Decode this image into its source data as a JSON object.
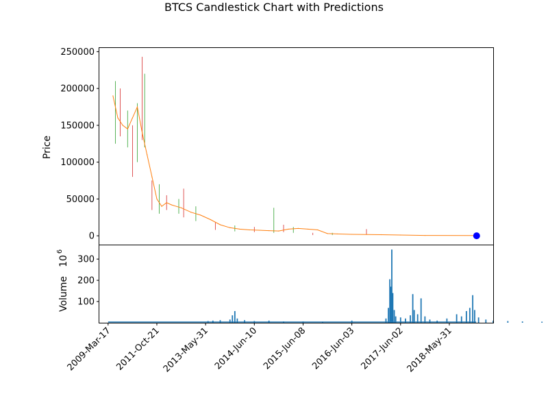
{
  "chart_data": {
    "type": "candlestick",
    "title": "BTCS Candlestick Chart with Predictions",
    "price_panel": {
      "ylabel": "Price",
      "yticks": [
        0,
        50000,
        100000,
        150000,
        200000,
        250000
      ],
      "ylim": [
        -12000,
        255000
      ],
      "series": [
        {
          "name": "",
          "role": "close-line",
          "color": "#ff7f0e",
          "x": [
            0.1,
            0.2,
            0.3,
            0.4,
            0.5,
            0.6,
            0.7,
            0.8,
            0.9,
            1.0,
            1.1,
            1.2,
            1.3,
            1.5,
            1.7,
            1.9,
            2.1,
            2.3,
            2.5,
            2.7,
            2.9,
            3.1,
            3.3,
            3.5,
            3.7,
            3.9,
            4.1,
            4.3,
            4.5,
            4.7,
            5.0,
            5.3,
            5.6,
            6.0,
            6.5,
            7.5
          ],
          "y": [
            190000,
            160000,
            150000,
            145000,
            160000,
            175000,
            140000,
            110000,
            80000,
            50000,
            40000,
            45000,
            42000,
            38000,
            32000,
            28000,
            22000,
            15000,
            11000,
            9000,
            8000,
            7500,
            7000,
            6500,
            9000,
            10000,
            9000,
            8000,
            3000,
            2500,
            2000,
            1800,
            1500,
            1000,
            500,
            300
          ]
        },
        {
          "name": "",
          "role": "prediction",
          "color": "#0000ff",
          "x": [
            7.56
          ],
          "y": [
            0
          ]
        }
      ],
      "spikes": [
        {
          "x": 0.15,
          "low": 125000,
          "high": 210000
        },
        {
          "x": 0.25,
          "low": 135000,
          "high": 200000
        },
        {
          "x": 0.4,
          "low": 120000,
          "high": 170000
        },
        {
          "x": 0.5,
          "low": 80000,
          "high": 150000
        },
        {
          "x": 0.6,
          "low": 100000,
          "high": 180000
        },
        {
          "x": 0.7,
          "low": 130000,
          "high": 243000
        },
        {
          "x": 0.75,
          "low": 120000,
          "high": 220000
        },
        {
          "x": 0.9,
          "low": 35000,
          "high": 75000
        },
        {
          "x": 1.05,
          "low": 30000,
          "high": 70000
        },
        {
          "x": 1.2,
          "low": 35000,
          "high": 55000
        },
        {
          "x": 1.45,
          "low": 30000,
          "high": 50000
        },
        {
          "x": 1.55,
          "low": 25000,
          "high": 64000
        },
        {
          "x": 1.8,
          "low": 20000,
          "high": 40000
        },
        {
          "x": 2.2,
          "low": 8000,
          "high": 18000
        },
        {
          "x": 2.6,
          "low": 6000,
          "high": 14000
        },
        {
          "x": 3.0,
          "low": 5000,
          "high": 12000
        },
        {
          "x": 3.4,
          "low": 4000,
          "high": 38000
        },
        {
          "x": 3.6,
          "low": 5000,
          "high": 15000
        },
        {
          "x": 3.8,
          "low": 4000,
          "high": 12000
        },
        {
          "x": 4.2,
          "low": 1000,
          "high": 4000
        },
        {
          "x": 4.6,
          "low": 1000,
          "high": 4000
        },
        {
          "x": 5.3,
          "low": 2000,
          "high": 9000
        }
      ]
    },
    "volume_panel": {
      "ylabel": "Volume",
      "yunit": "10",
      "yunit_exp": "6",
      "yticks": [
        100,
        200,
        300
      ],
      "ylim": [
        0,
        365
      ],
      "bars": [
        {
          "x": 2.05,
          "v": 8
        },
        {
          "x": 2.15,
          "v": 10
        },
        {
          "x": 2.3,
          "v": 12
        },
        {
          "x": 2.5,
          "v": 15
        },
        {
          "x": 2.55,
          "v": 35
        },
        {
          "x": 2.6,
          "v": 55
        },
        {
          "x": 2.65,
          "v": 20
        },
        {
          "x": 2.8,
          "v": 12
        },
        {
          "x": 3.0,
          "v": 8
        },
        {
          "x": 3.3,
          "v": 10
        },
        {
          "x": 3.6,
          "v": 6
        },
        {
          "x": 4.0,
          "v": 6
        },
        {
          "x": 4.4,
          "v": 5
        },
        {
          "x": 5.0,
          "v": 10
        },
        {
          "x": 5.7,
          "v": 20
        },
        {
          "x": 5.75,
          "v": 70
        },
        {
          "x": 5.78,
          "v": 205
        },
        {
          "x": 5.8,
          "v": 170
        },
        {
          "x": 5.82,
          "v": 345
        },
        {
          "x": 5.84,
          "v": 140
        },
        {
          "x": 5.87,
          "v": 60
        },
        {
          "x": 5.9,
          "v": 30
        },
        {
          "x": 6.0,
          "v": 25
        },
        {
          "x": 6.1,
          "v": 20
        },
        {
          "x": 6.2,
          "v": 35
        },
        {
          "x": 6.25,
          "v": 135
        },
        {
          "x": 6.28,
          "v": 60
        },
        {
          "x": 6.35,
          "v": 40
        },
        {
          "x": 6.42,
          "v": 115
        },
        {
          "x": 6.5,
          "v": 30
        },
        {
          "x": 6.6,
          "v": 15
        },
        {
          "x": 6.75,
          "v": 10
        },
        {
          "x": 6.95,
          "v": 20
        },
        {
          "x": 7.15,
          "v": 40
        },
        {
          "x": 7.25,
          "v": 30
        },
        {
          "x": 7.35,
          "v": 55
        },
        {
          "x": 7.42,
          "v": 70
        },
        {
          "x": 7.48,
          "v": 130
        },
        {
          "x": 7.52,
          "v": 60
        },
        {
          "x": 7.6,
          "v": 25
        },
        {
          "x": 7.75,
          "v": 15
        },
        {
          "x": 7.9,
          "v": 10
        },
        {
          "x": 8.2,
          "v": 8
        },
        {
          "x": 8.5,
          "v": 6
        },
        {
          "x": 8.9,
          "v": 5
        }
      ]
    },
    "x_ticks": [
      {
        "x": 0,
        "label": "2009-Mar-17"
      },
      {
        "x": 1,
        "label": "2011-Oct-21"
      },
      {
        "x": 2,
        "label": "2013-May-31"
      },
      {
        "x": 3,
        "label": "2014-Jun-10"
      },
      {
        "x": 4,
        "label": "2015-Jun-08"
      },
      {
        "x": 5,
        "label": "2016-Jun-03"
      },
      {
        "x": 6,
        "label": "2017-Jun-02"
      },
      {
        "x": 7,
        "label": "2018-May-31"
      }
    ],
    "xlim": [
      -0.18,
      7.9
    ]
  }
}
